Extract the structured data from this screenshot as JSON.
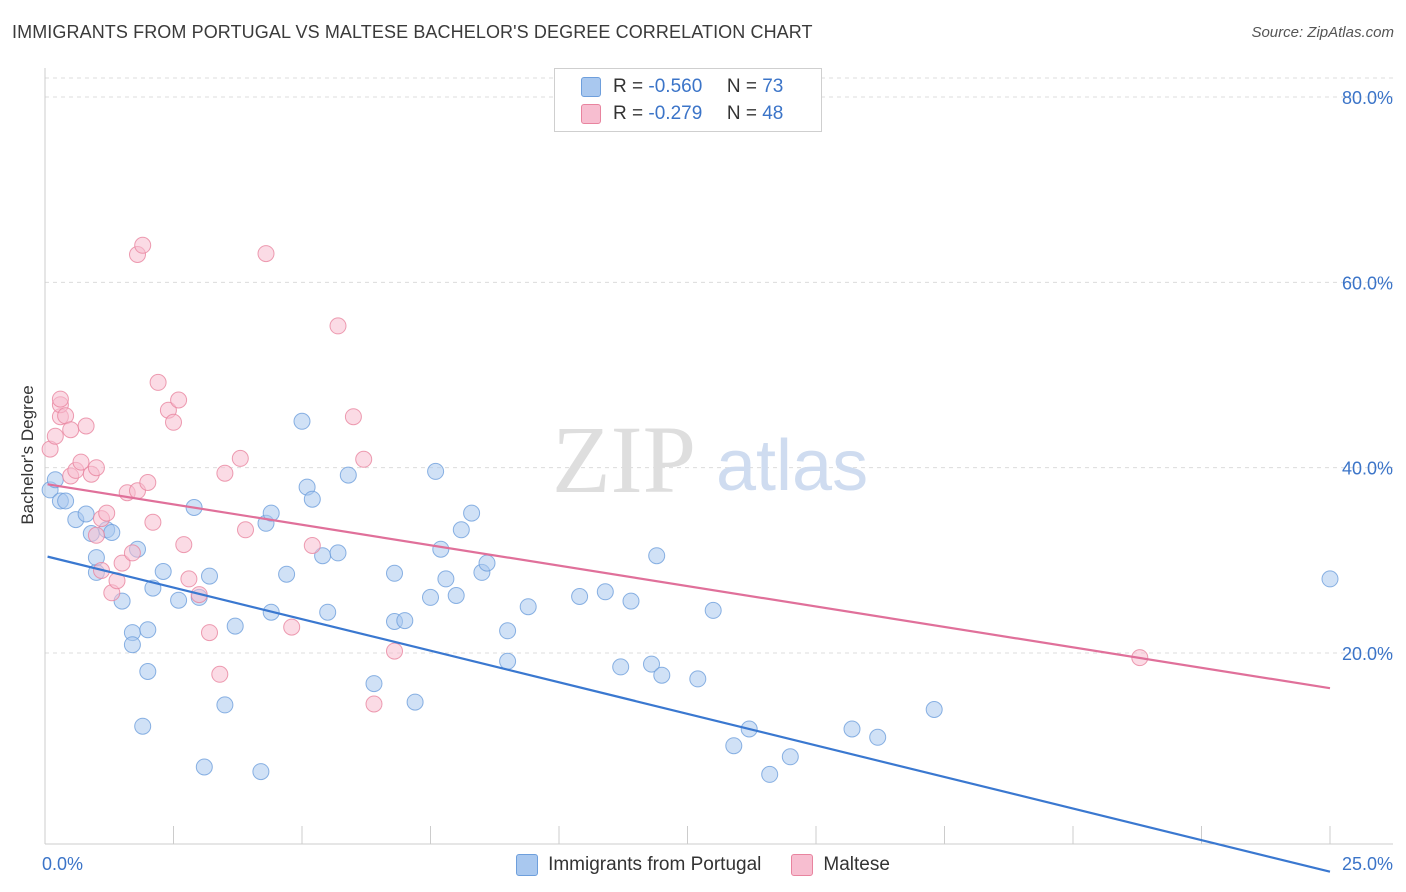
{
  "title": "IMMIGRANTS FROM PORTUGAL VS MALTESE BACHELOR'S DEGREE CORRELATION CHART",
  "source": "Source: ZipAtlas.com",
  "watermark": {
    "zip": "ZIP",
    "atlas": "atlas"
  },
  "stats": [
    {
      "r_label": "R =",
      "r_value": "-0.560",
      "n_label": "N =",
      "n_value": "73",
      "color": "#a9c8ef",
      "border": "#6e9fdc"
    },
    {
      "r_label": "R =",
      "r_value": "-0.279",
      "n_label": "N =",
      "n_value": "48",
      "color": "#f7bed0",
      "border": "#e8849f"
    }
  ],
  "legend": [
    {
      "label": "Immigrants from Portugal",
      "color": "#a9c8ef",
      "border": "#6e9fdc"
    },
    {
      "label": "Maltese",
      "color": "#f7bed0",
      "border": "#e8849f"
    }
  ],
  "chart_data": {
    "type": "scatter",
    "title": "IMMIGRANTS FROM PORTUGAL VS MALTESE BACHELOR'S DEGREE CORRELATION CHART",
    "xlabel": "",
    "ylabel": "Bachelor's Degree",
    "xlim": [
      0,
      25
    ],
    "ylim": [
      0,
      80
    ],
    "x_tick_labels": [
      "0.0%",
      "25.0%"
    ],
    "y_ticks": [
      20,
      40,
      60,
      80
    ],
    "y_tick_labels": [
      "20.0%",
      "40.0%",
      "60.0%",
      "80.0%"
    ],
    "grid": "horizontal dashed",
    "legend_position": "bottom-center",
    "series": [
      {
        "name": "Immigrants from Portugal",
        "color": "#6e9fdc",
        "fill": "#a9c8ef",
        "trend": [
          [
            0.05,
            30.4
          ],
          [
            25.0,
            -3.6
          ]
        ],
        "points": [
          [
            0.1,
            37.6
          ],
          [
            0.2,
            38.7
          ],
          [
            0.3,
            36.4
          ],
          [
            0.4,
            36.4
          ],
          [
            0.6,
            34.4
          ],
          [
            0.8,
            35.0
          ],
          [
            0.9,
            32.9
          ],
          [
            1.0,
            28.7
          ],
          [
            1.0,
            30.3
          ],
          [
            1.2,
            33.3
          ],
          [
            1.3,
            33.0
          ],
          [
            1.5,
            25.6
          ],
          [
            1.7,
            22.2
          ],
          [
            1.7,
            20.9
          ],
          [
            1.8,
            31.2
          ],
          [
            1.9,
            12.1
          ],
          [
            2.0,
            18.0
          ],
          [
            2.0,
            22.5
          ],
          [
            2.1,
            27.0
          ],
          [
            2.3,
            28.8
          ],
          [
            2.6,
            25.7
          ],
          [
            2.9,
            35.7
          ],
          [
            3.0,
            26.0
          ],
          [
            3.1,
            7.7
          ],
          [
            3.2,
            28.3
          ],
          [
            3.5,
            14.4
          ],
          [
            3.7,
            22.9
          ],
          [
            4.2,
            7.2
          ],
          [
            4.3,
            34.0
          ],
          [
            4.4,
            24.4
          ],
          [
            4.4,
            35.1
          ],
          [
            4.7,
            28.5
          ],
          [
            5.0,
            45.0
          ],
          [
            5.1,
            37.9
          ],
          [
            5.2,
            36.6
          ],
          [
            5.4,
            30.5
          ],
          [
            5.5,
            24.4
          ],
          [
            5.7,
            30.8
          ],
          [
            5.9,
            39.2
          ],
          [
            6.4,
            16.7
          ],
          [
            6.8,
            23.4
          ],
          [
            6.8,
            28.6
          ],
          [
            7.0,
            23.5
          ],
          [
            7.2,
            14.7
          ],
          [
            7.5,
            26.0
          ],
          [
            7.6,
            39.6
          ],
          [
            7.7,
            31.2
          ],
          [
            7.8,
            28.0
          ],
          [
            8.0,
            26.2
          ],
          [
            8.1,
            33.3
          ],
          [
            8.3,
            35.1
          ],
          [
            8.5,
            28.7
          ],
          [
            8.6,
            29.7
          ],
          [
            9.0,
            22.4
          ],
          [
            9.0,
            19.1
          ],
          [
            9.4,
            25.0
          ],
          [
            10.4,
            26.1
          ],
          [
            10.9,
            26.6
          ],
          [
            11.2,
            18.5
          ],
          [
            11.4,
            25.6
          ],
          [
            11.8,
            18.8
          ],
          [
            11.9,
            30.5
          ],
          [
            12.0,
            17.6
          ],
          [
            12.7,
            17.2
          ],
          [
            13.0,
            24.6
          ],
          [
            13.4,
            10.0
          ],
          [
            13.7,
            11.8
          ],
          [
            14.1,
            6.9
          ],
          [
            14.5,
            8.8
          ],
          [
            15.7,
            11.8
          ],
          [
            16.2,
            10.9
          ],
          [
            17.3,
            13.9
          ],
          [
            25.0,
            28.0
          ]
        ]
      },
      {
        "name": "Maltese",
        "color": "#e8849f",
        "fill": "#f7bed0",
        "trend": [
          [
            0.05,
            38.2
          ],
          [
            25.0,
            16.2
          ]
        ],
        "points": [
          [
            0.1,
            42.0
          ],
          [
            0.2,
            43.4
          ],
          [
            0.3,
            45.5
          ],
          [
            0.3,
            46.8
          ],
          [
            0.3,
            47.4
          ],
          [
            0.4,
            45.6
          ],
          [
            0.5,
            44.1
          ],
          [
            0.5,
            39.1
          ],
          [
            0.6,
            39.7
          ],
          [
            0.7,
            40.6
          ],
          [
            0.8,
            44.5
          ],
          [
            0.9,
            39.3
          ],
          [
            1.0,
            40.0
          ],
          [
            1.0,
            32.7
          ],
          [
            1.1,
            34.5
          ],
          [
            1.1,
            28.9
          ],
          [
            1.2,
            35.1
          ],
          [
            1.3,
            26.5
          ],
          [
            1.4,
            27.8
          ],
          [
            1.5,
            29.7
          ],
          [
            1.6,
            37.3
          ],
          [
            1.7,
            30.8
          ],
          [
            1.8,
            37.5
          ],
          [
            1.8,
            63.0
          ],
          [
            1.9,
            64.0
          ],
          [
            2.0,
            38.4
          ],
          [
            2.1,
            34.1
          ],
          [
            2.2,
            49.2
          ],
          [
            2.4,
            46.2
          ],
          [
            2.5,
            44.9
          ],
          [
            2.6,
            47.3
          ],
          [
            2.7,
            31.7
          ],
          [
            2.8,
            28.0
          ],
          [
            3.0,
            26.3
          ],
          [
            3.2,
            22.2
          ],
          [
            3.4,
            17.7
          ],
          [
            3.5,
            39.4
          ],
          [
            3.8,
            41.0
          ],
          [
            3.9,
            33.3
          ],
          [
            4.3,
            63.1
          ],
          [
            4.8,
            22.8
          ],
          [
            5.2,
            31.6
          ],
          [
            5.7,
            55.3
          ],
          [
            6.0,
            45.5
          ],
          [
            6.2,
            40.9
          ],
          [
            6.4,
            14.5
          ],
          [
            6.8,
            20.2
          ],
          [
            21.3,
            19.5
          ]
        ]
      }
    ]
  }
}
